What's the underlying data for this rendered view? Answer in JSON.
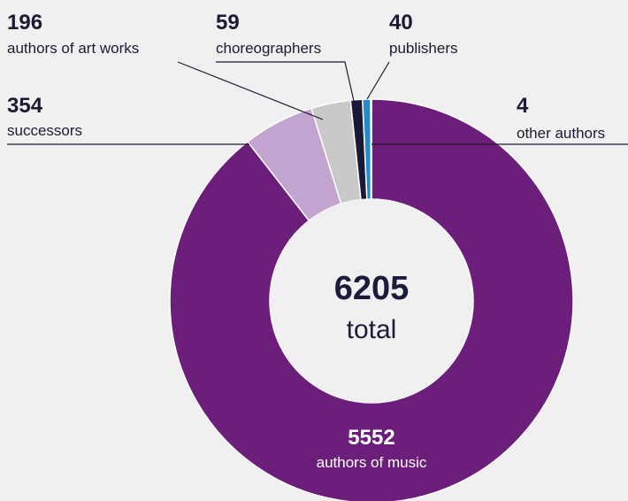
{
  "chart_data": {
    "type": "pie",
    "donut": true,
    "center": {
      "value": "6205",
      "label": "total"
    },
    "slices": [
      {
        "value": 5552,
        "value_label": "5552",
        "label": "authors of music",
        "color": "#6c1f7a"
      },
      {
        "value": 354,
        "value_label": "354",
        "label": "successors",
        "color": "#c3a3cf"
      },
      {
        "value": 196,
        "value_label": "196",
        "label": "authors of art works",
        "color": "#c9c9c9"
      },
      {
        "value": 59,
        "value_label": "59",
        "label": "choreographers",
        "color": "#191937"
      },
      {
        "value": 40,
        "value_label": "40",
        "label": "publishers",
        "color": "#1f8cd0"
      },
      {
        "value": 4,
        "value_label": "4",
        "label": "other authors",
        "color": "#3b3b5c"
      }
    ]
  }
}
